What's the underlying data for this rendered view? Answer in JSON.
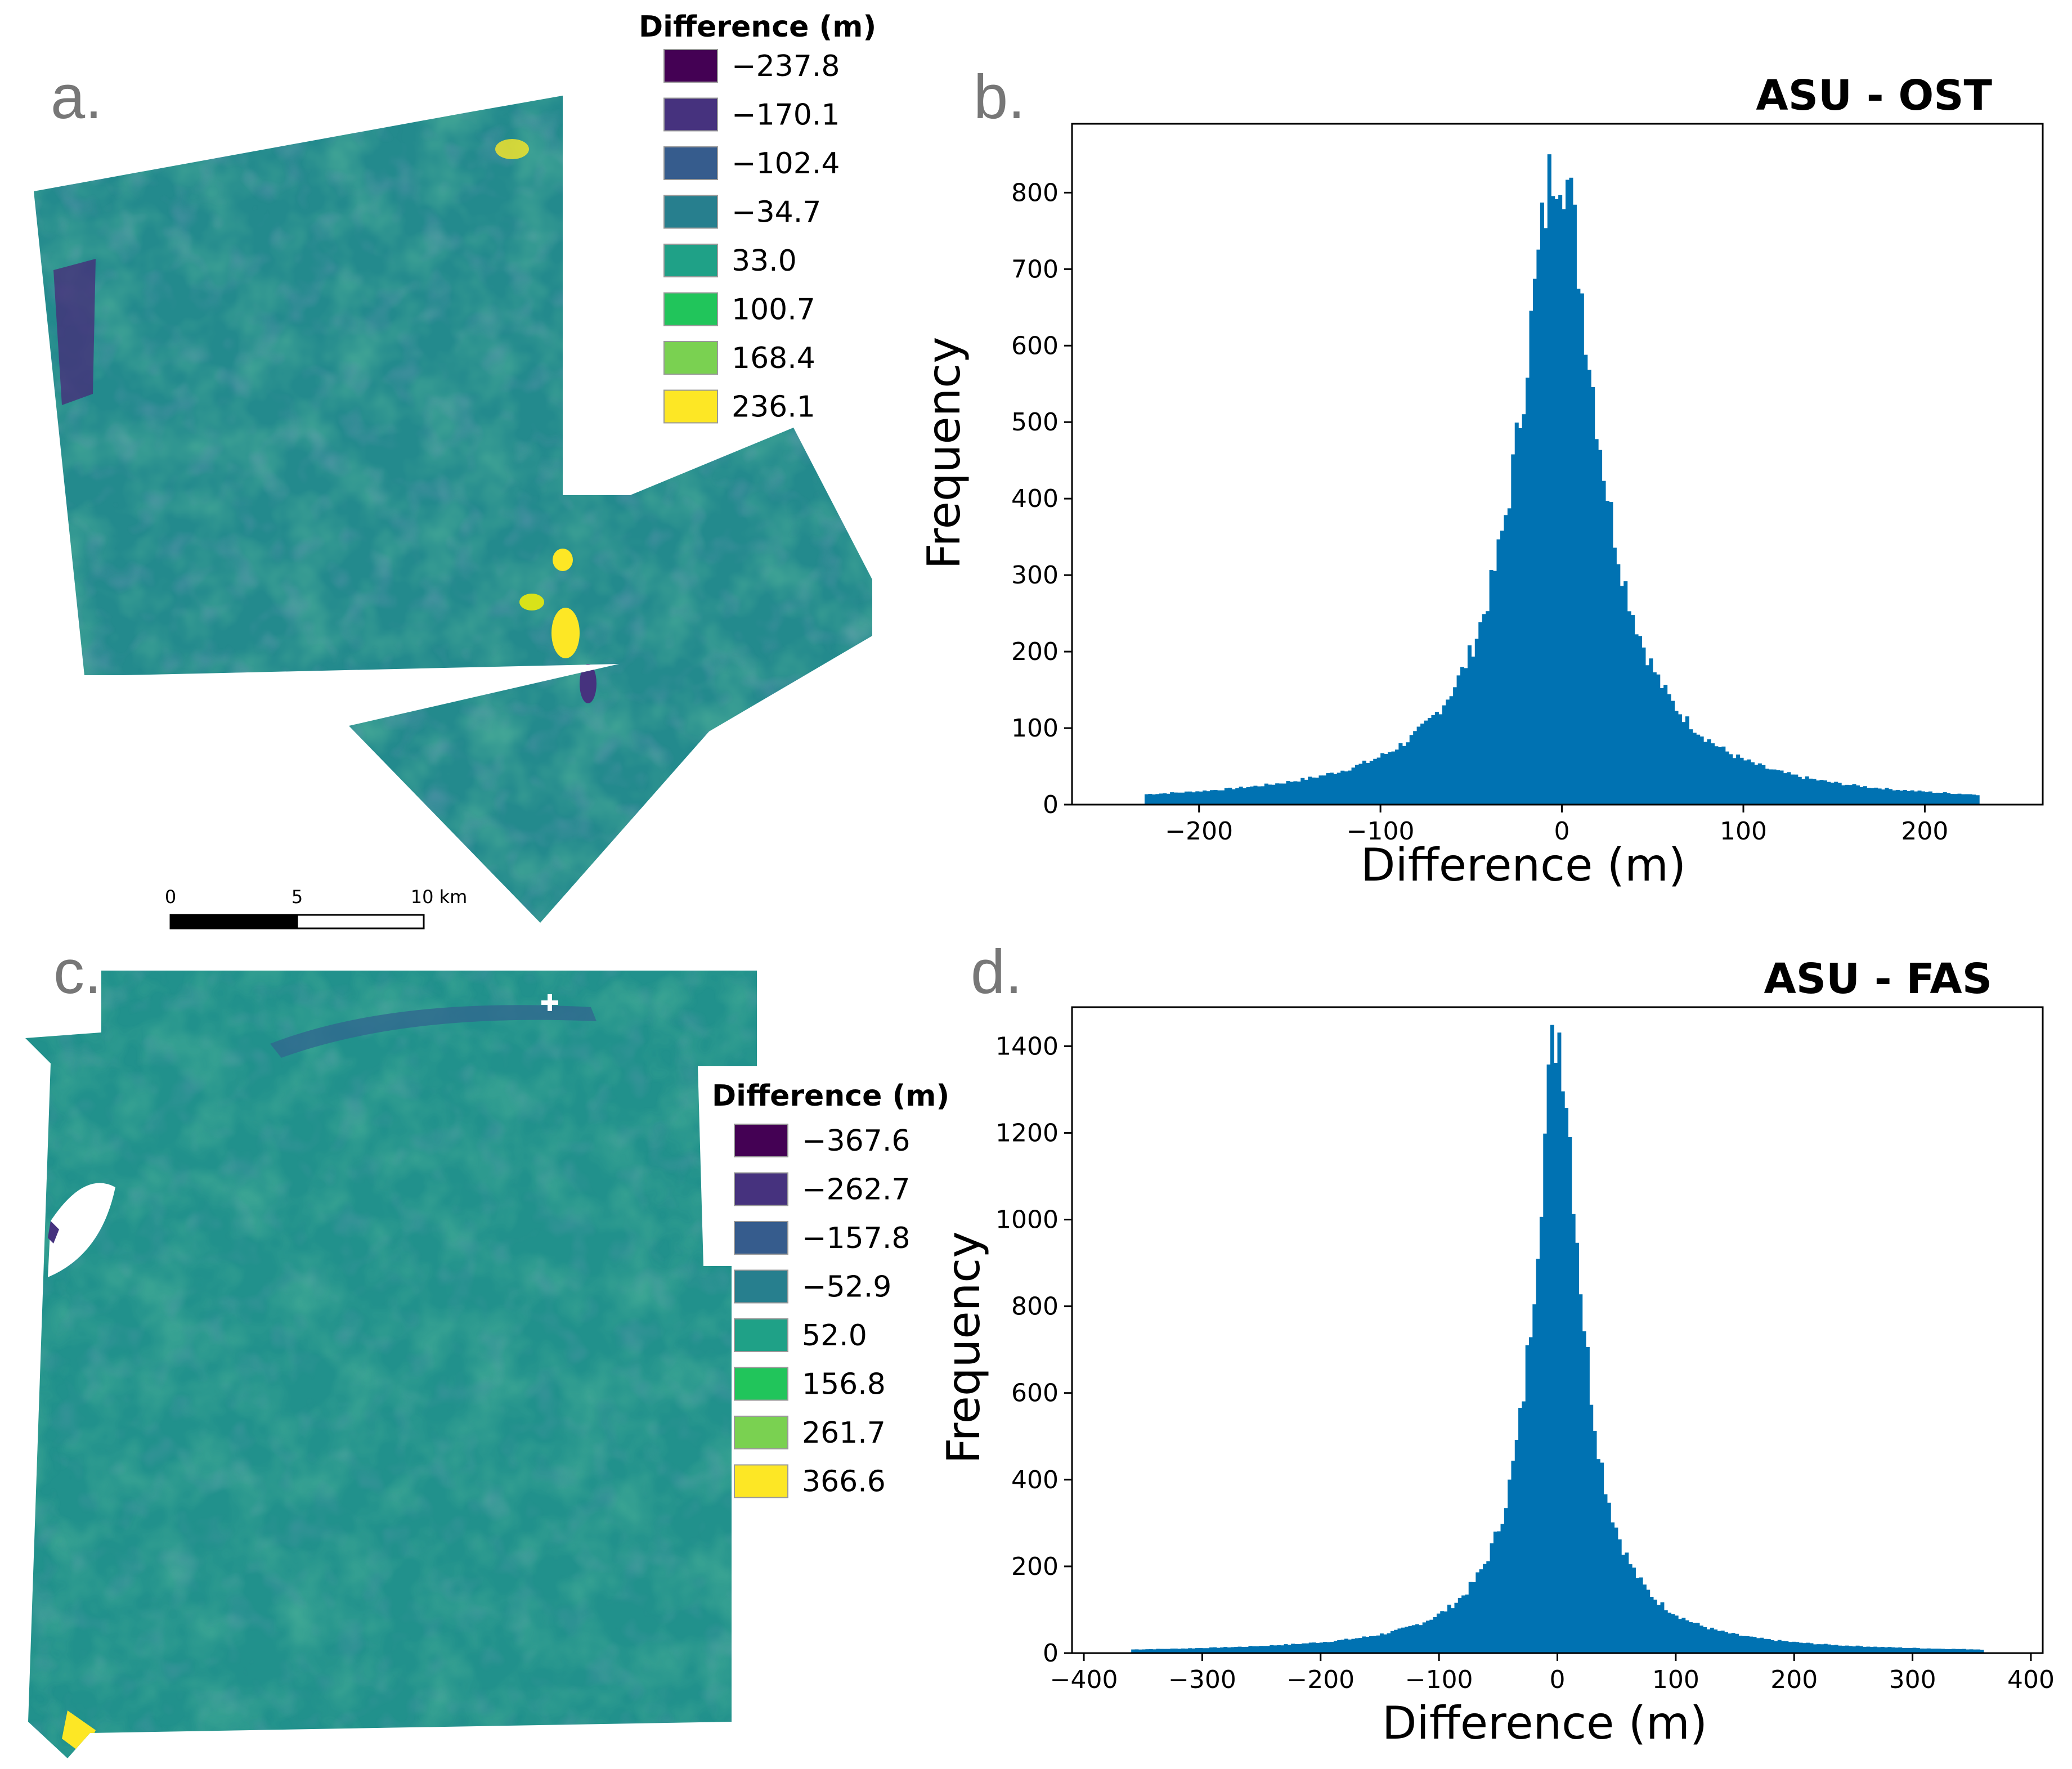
{
  "panels": {
    "a": {
      "letter": "a.",
      "legend_title": "Difference (m)",
      "legend": [
        {
          "label": "−237.8",
          "color": "#440154"
        },
        {
          "label": "−170.1",
          "color": "#46327e"
        },
        {
          "label": "−102.4",
          "color": "#365c8d"
        },
        {
          "label": "−34.7",
          "color": "#277f8e"
        },
        {
          "label": "33.0",
          "color": "#1fa187"
        },
        {
          "label": "100.7",
          "color": "#21c55b"
        },
        {
          "label": "168.4",
          "color": "#7ad151"
        },
        {
          "label": "236.1",
          "color": "#fde725"
        }
      ],
      "scalebar": {
        "ticks": [
          "0",
          "5",
          "10 km"
        ]
      }
    },
    "c": {
      "letter": "c.",
      "legend_title": "Difference (m)",
      "legend": [
        {
          "label": "−367.6",
          "color": "#440154"
        },
        {
          "label": "−262.7",
          "color": "#46327e"
        },
        {
          "label": "−157.8",
          "color": "#365c8d"
        },
        {
          "label": "−52.9",
          "color": "#277f8e"
        },
        {
          "label": "52.0",
          "color": "#1fa187"
        },
        {
          "label": "156.8",
          "color": "#21c55b"
        },
        {
          "label": "261.7",
          "color": "#7ad151"
        },
        {
          "label": "366.6",
          "color": "#fde725"
        }
      ]
    }
  },
  "chart_data": [
    {
      "id": "b",
      "letter": "b.",
      "type": "bar",
      "title": "ASU - OST",
      "xlabel": "Difference (m)",
      "ylabel": "Frequency",
      "xlim": [
        -270,
        265
      ],
      "ylim": [
        0,
        890
      ],
      "xticks": [
        -200,
        -100,
        0,
        100,
        200
      ],
      "xtick_labels": [
        "−200",
        "−100",
        "0",
        "100",
        "200"
      ],
      "yticks": [
        0,
        100,
        200,
        300,
        400,
        500,
        600,
        700,
        800
      ],
      "ytick_labels": [
        "0",
        "100",
        "200",
        "300",
        "400",
        "500",
        "600",
        "700",
        "800"
      ],
      "bar_color": "#0072b2",
      "distribution": {
        "center": -2,
        "peak": 848,
        "scale": 26,
        "range": [
          -230,
          230
        ],
        "bin_width": 2
      }
    },
    {
      "id": "d",
      "letter": "d.",
      "type": "bar",
      "title": "ASU - FAS",
      "xlabel": "Difference (m)",
      "ylabel": "Frequency",
      "xlim": [
        -410,
        410
      ],
      "ylim": [
        0,
        1490
      ],
      "xticks": [
        -400,
        -300,
        -200,
        -100,
        0,
        100,
        200,
        300,
        400
      ],
      "xtick_labels": [
        "−400",
        "−300",
        "−200",
        "−100",
        "0",
        "100",
        "200",
        "300",
        "400"
      ],
      "yticks": [
        0,
        200,
        400,
        600,
        800,
        1000,
        1200,
        1400
      ],
      "ytick_labels": [
        "0",
        "200",
        "400",
        "600",
        "800",
        "1000",
        "1200",
        "1400"
      ],
      "bar_color": "#0072b2",
      "distribution": {
        "center": 0,
        "peak": 1440,
        "scale": 24,
        "range": [
          -360,
          360
        ],
        "bin_width": 3
      }
    }
  ]
}
